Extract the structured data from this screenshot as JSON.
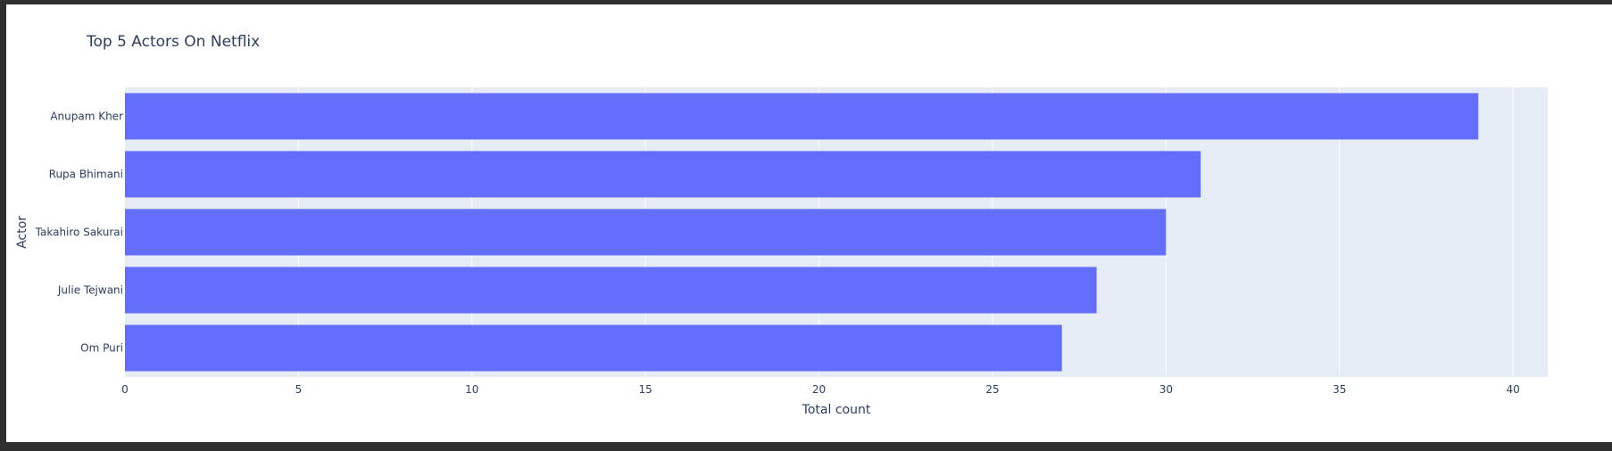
{
  "chart_data": {
    "type": "bar",
    "orientation": "horizontal",
    "title": "Top 5 Actors On Netflix",
    "xlabel": "Total count",
    "ylabel": "Actor",
    "categories": [
      "Anupam Kher",
      "Rupa Bhimani",
      "Takahiro Sakurai",
      "Julie Tejwani",
      "Om Puri"
    ],
    "values": [
      39,
      31,
      30,
      28,
      27
    ],
    "xlim": [
      0,
      41
    ],
    "xticks": [
      0,
      5,
      10,
      15,
      20,
      25,
      30,
      35,
      40
    ],
    "grid": true,
    "legend": "none",
    "colors": {
      "bar": "#636efa",
      "plot_bg": "#e5ecf6",
      "text": "#2a3f5f",
      "grid": "#ffffff"
    }
  }
}
